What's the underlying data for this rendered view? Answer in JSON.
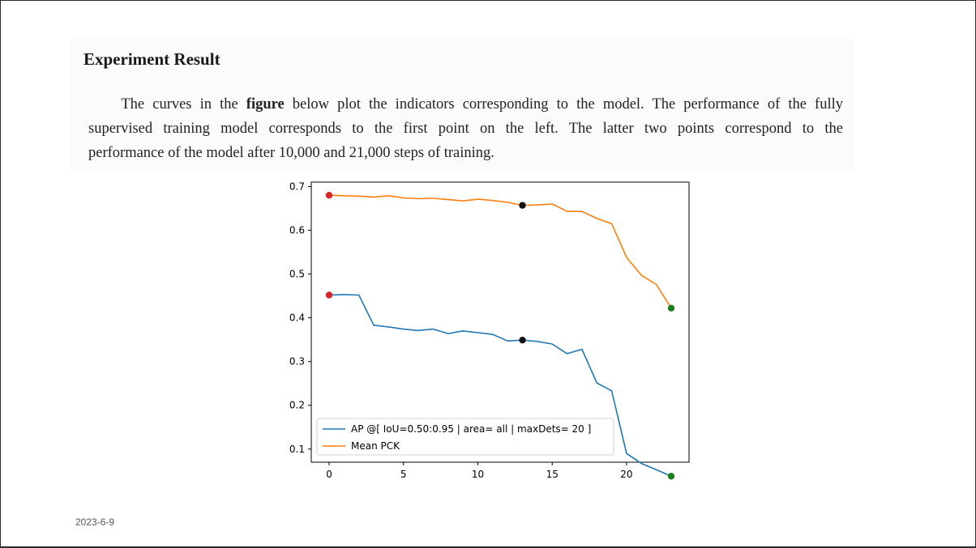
{
  "slide": {
    "title": "Experiment Result",
    "paragraph": {
      "line1_pre": "The curves in the ",
      "line1_bold": "figure",
      "line1_post": " below plot the indicators corresponding to the model. The performance of the fully",
      "line2": "supervised training model corresponds to the first point on the left. The latter two points correspond to the",
      "line3": "performance of the model after 10,000 and 21,000 steps of training."
    },
    "date": "2023-6-9"
  },
  "chart_data": {
    "type": "line",
    "title": "",
    "xlabel": "",
    "ylabel": "",
    "xlim": [
      -1.2,
      24.2
    ],
    "ylim": [
      0.07,
      0.71
    ],
    "xticks": [
      0,
      5,
      10,
      15,
      20
    ],
    "yticks": [
      0.1,
      0.2,
      0.3,
      0.4,
      0.5,
      0.6,
      0.7
    ],
    "grid": false,
    "legend_position": "lower-left",
    "series": [
      {
        "name": "AP @[ IoU=0.50:0.95 | area= all | maxDets= 20 ]",
        "color": "#1f77b4",
        "x": [
          0,
          1,
          2,
          3,
          4,
          5,
          6,
          7,
          8,
          9,
          10,
          11,
          12,
          13,
          14,
          15,
          16,
          17,
          18,
          19,
          20,
          21,
          22,
          23
        ],
        "y": [
          0.452,
          0.453,
          0.452,
          0.383,
          0.379,
          0.374,
          0.371,
          0.374,
          0.364,
          0.37,
          0.366,
          0.362,
          0.347,
          0.349,
          0.346,
          0.34,
          0.318,
          0.328,
          0.251,
          0.233,
          0.09,
          0.067,
          0.053,
          0.038
        ]
      },
      {
        "name": "Mean PCK",
        "color": "#ff7f0e",
        "x": [
          0,
          1,
          2,
          3,
          4,
          5,
          6,
          7,
          8,
          9,
          10,
          11,
          12,
          13,
          14,
          15,
          16,
          17,
          18,
          19,
          20,
          21,
          22,
          23
        ],
        "y": [
          0.68,
          0.679,
          0.678,
          0.676,
          0.679,
          0.674,
          0.672,
          0.673,
          0.67,
          0.667,
          0.671,
          0.668,
          0.664,
          0.657,
          0.658,
          0.66,
          0.643,
          0.643,
          0.627,
          0.615,
          0.538,
          0.497,
          0.476,
          0.422
        ]
      }
    ],
    "markers": [
      {
        "series": 0,
        "x": 0,
        "y": 0.452,
        "color": "#d62728"
      },
      {
        "series": 1,
        "x": 0,
        "y": 0.68,
        "color": "#d62728"
      },
      {
        "series": 0,
        "x": 13,
        "y": 0.349,
        "color": "#111111"
      },
      {
        "series": 1,
        "x": 13,
        "y": 0.657,
        "color": "#111111"
      },
      {
        "series": 0,
        "x": 23,
        "y": 0.038,
        "color": "#1a7f1a"
      },
      {
        "series": 1,
        "x": 23,
        "y": 0.422,
        "color": "#1a7f1a"
      }
    ]
  }
}
